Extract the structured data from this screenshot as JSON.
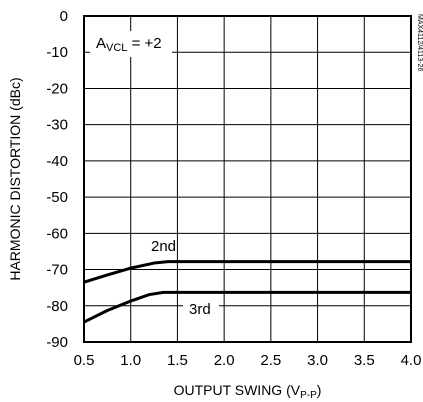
{
  "chart_data": {
    "type": "line",
    "xlabel": "OUTPUT SWING (V",
    "xlabel_sub": "P-P",
    "xlabel_end": ")",
    "ylabel": "HARMONIC DISTORTION (dBc)",
    "xlim": [
      0.5,
      4.0
    ],
    "ylim": [
      -90,
      0
    ],
    "grid": true,
    "x_ticks": [
      "0.5",
      "1.0",
      "1.5",
      "2.0",
      "2.5",
      "3.0",
      "3.5",
      "4.0"
    ],
    "y_ticks": [
      "0",
      "-10",
      "-20",
      "-30",
      "-40",
      "-50",
      "-60",
      "-70",
      "-80",
      "-90"
    ],
    "annotation": {
      "main": "A",
      "sub": "VCL",
      "rest": " = +2"
    },
    "side_label": "MAX4112/4113-26",
    "series": [
      {
        "name": "2nd",
        "x": [
          0.5,
          0.75,
          1.0,
          1.25,
          1.4,
          2.0,
          3.0,
          4.0
        ],
        "y": [
          -73.5,
          -71.5,
          -69.6,
          -68.2,
          -67.8,
          -67.8,
          -67.8,
          -67.8
        ]
      },
      {
        "name": "3rd",
        "x": [
          0.5,
          0.75,
          1.0,
          1.2,
          1.35,
          2.0,
          3.0,
          4.0
        ],
        "y": [
          -84.5,
          -81.3,
          -78.7,
          -76.9,
          -76.3,
          -76.3,
          -76.3,
          -76.3
        ]
      }
    ]
  }
}
